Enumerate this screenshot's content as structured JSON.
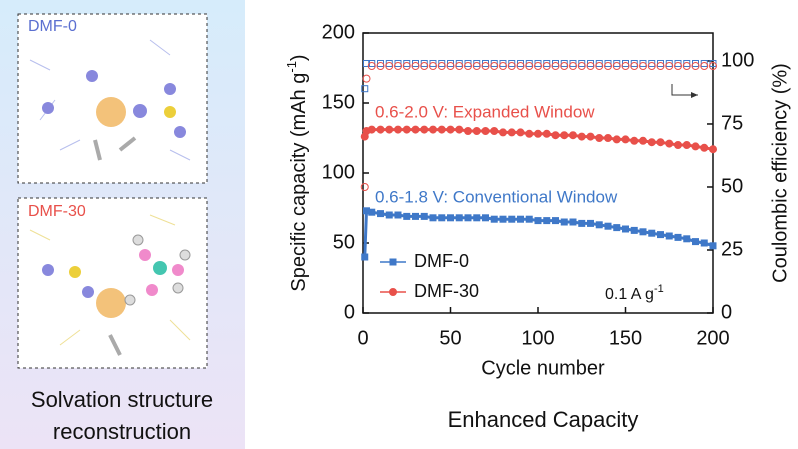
{
  "panel": {
    "caption_lines": [
      "Solvation structure",
      "reconstruction"
    ],
    "boxes": [
      "DMF-0",
      "DMF-30"
    ]
  },
  "chart_data": {
    "type": "line",
    "footer": "Enhanced Capacity",
    "x_label": "Cycle number",
    "y_label": {
      "text": "Specific capacity (mAh g",
      "sup": "-1",
      "end": ")"
    },
    "y2_label": "Coulombic efficiency (%)",
    "annotations": [
      {
        "text": "0.6-2.0 V: Expanded Window",
        "color": "#e8504a"
      },
      {
        "text": "0.6-1.8 V: Conventional Window",
        "color": "#3f78c8"
      }
    ],
    "current_label": {
      "text": "0.1 A g",
      "sup": "-1"
    },
    "legend": "lower left",
    "x": [
      1,
      2,
      5,
      10,
      15,
      20,
      25,
      30,
      35,
      40,
      45,
      50,
      55,
      60,
      65,
      70,
      75,
      80,
      85,
      90,
      95,
      100,
      105,
      110,
      115,
      120,
      125,
      130,
      135,
      140,
      145,
      150,
      155,
      160,
      165,
      170,
      175,
      180,
      185,
      190,
      195,
      200
    ],
    "xlim": [
      0,
      200
    ],
    "xticks": [
      0,
      50,
      100,
      150,
      200
    ],
    "ylim": [
      0,
      200
    ],
    "yticks": [
      0,
      50,
      100,
      150,
      200
    ],
    "y2lim": [
      0,
      111.1
    ],
    "y2ticks": [
      0,
      25,
      50,
      75,
      {
        "value": 100,
        "label": "100"
      }
    ],
    "series": [
      {
        "name": "DMF-0",
        "color": "#3f78c8",
        "marker": "square",
        "values": [
          40,
          73,
          72,
          71,
          70,
          70,
          69,
          69,
          69,
          68,
          68,
          68,
          68,
          68,
          68,
          68,
          67,
          67,
          67,
          67,
          67,
          66,
          66,
          66,
          65,
          65,
          64,
          64,
          63,
          62,
          61,
          60,
          59,
          58,
          57,
          56,
          55,
          54,
          53,
          51,
          50,
          48
        ],
        "ce": [
          89,
          99,
          99,
          99,
          99,
          99,
          99,
          99,
          99,
          99,
          99,
          99,
          99,
          99,
          99,
          99,
          99,
          99,
          99,
          99,
          99,
          99,
          99,
          99,
          99,
          99,
          99,
          99,
          99,
          99,
          99,
          99,
          99,
          99,
          99,
          99,
          99,
          99,
          99,
          99,
          99,
          99
        ]
      },
      {
        "name": "DMF-30",
        "color": "#e8504a",
        "marker": "circle",
        "values": [
          126,
          130,
          131,
          131,
          131,
          131,
          131,
          131,
          131,
          131,
          131,
          131,
          131,
          130,
          130,
          130,
          130,
          129,
          129,
          129,
          128,
          128,
          128,
          127,
          127,
          127,
          126,
          126,
          125,
          125,
          124,
          124,
          123,
          123,
          122,
          122,
          121,
          120,
          120,
          119,
          118,
          117
        ],
        "ce": [
          50,
          93,
          98,
          98,
          98,
          98,
          98,
          98,
          98,
          98,
          98,
          98,
          98,
          98,
          98,
          98,
          98,
          98,
          98,
          98,
          98,
          98,
          98,
          98,
          98,
          98,
          98,
          98,
          98,
          98,
          98,
          98,
          98,
          98,
          98,
          98,
          98,
          98,
          98,
          98,
          98,
          98
        ]
      }
    ]
  }
}
